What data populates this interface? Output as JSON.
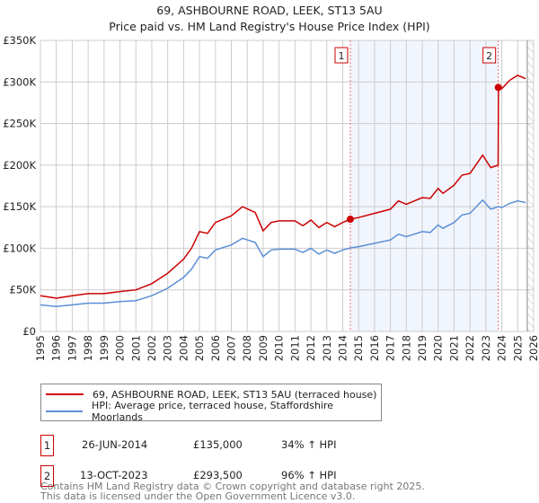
{
  "chart_data": {
    "type": "line",
    "title": "69, ASHBOURNE ROAD, LEEK, ST13 5AU",
    "subtitle": "Price paid vs. HM Land Registry's House Price Index (HPI)",
    "xlim": [
      1995,
      2026
    ],
    "ylim": [
      0,
      350000
    ],
    "grid": true,
    "x_ticks": [
      "1995",
      "1996",
      "1997",
      "1998",
      "1999",
      "2000",
      "2001",
      "2002",
      "2003",
      "2004",
      "2005",
      "2006",
      "2007",
      "2008",
      "2009",
      "2010",
      "2011",
      "2012",
      "2013",
      "2014",
      "2015",
      "2016",
      "2017",
      "2018",
      "2019",
      "2020",
      "2021",
      "2022",
      "2023",
      "2024",
      "2025",
      "2026"
    ],
    "y_ticks": [
      {
        "v": 0,
        "label": "£0"
      },
      {
        "v": 50000,
        "label": "£50K"
      },
      {
        "v": 100000,
        "label": "£100K"
      },
      {
        "v": 150000,
        "label": "£150K"
      },
      {
        "v": 200000,
        "label": "£200K"
      },
      {
        "v": 250000,
        "label": "£250K"
      },
      {
        "v": 300000,
        "label": "£300K"
      },
      {
        "v": 350000,
        "label": "£350K"
      }
    ],
    "legend_placement": "below",
    "series": [
      {
        "name": "69, ASHBOURNE ROAD, LEEK, ST13 5AU (terraced house)",
        "color": "#cc0000",
        "x": [
          1995,
          1996,
          1997,
          1998,
          1999,
          2000,
          2001,
          2002,
          2003,
          2004,
          2004.5,
          2005,
          2005.5,
          2006,
          2007,
          2007.7,
          2008.5,
          2009,
          2009.5,
          2010,
          2011,
          2011.5,
          2012,
          2012.5,
          2013,
          2013.5,
          2014,
          2014.48,
          2015,
          2016,
          2017,
          2017.5,
          2018,
          2019,
          2019.5,
          2020,
          2020.3,
          2021,
          2021.5,
          2022,
          2022.8,
          2023.3,
          2023.77,
          2023.79,
          2024,
          2024.5,
          2025,
          2025.5
        ],
        "y": [
          43000,
          40000,
          43000,
          45500,
          45500,
          48000,
          50000,
          57500,
          70000,
          87000,
          100000,
          120000,
          118000,
          131000,
          139000,
          150000,
          143000,
          121000,
          131000,
          133000,
          133000,
          127000,
          134000,
          125000,
          131000,
          126000,
          131000,
          135000,
          137000,
          142000,
          147000,
          157000,
          153000,
          161000,
          160000,
          172000,
          166000,
          176000,
          188000,
          190000,
          212000,
          197000,
          200000,
          293500,
          292000,
          302000,
          308000,
          304000
        ]
      },
      {
        "name": "HPI: Average price, terraced house, Staffordshire Moorlands",
        "color": "#5b8fd6",
        "x": [
          1995,
          1996,
          1997,
          1998,
          1999,
          2000,
          2001,
          2002,
          2003,
          2004,
          2004.5,
          2005,
          2005.5,
          2006,
          2007,
          2007.7,
          2008.5,
          2009,
          2009.5,
          2010,
          2011,
          2011.5,
          2012,
          2012.5,
          2013,
          2013.5,
          2014,
          2014.48,
          2015,
          2016,
          2017,
          2017.5,
          2018,
          2019,
          2019.5,
          2020,
          2020.3,
          2021,
          2021.5,
          2022,
          2022.8,
          2023.3,
          2023.8,
          2024,
          2024.5,
          2025,
          2025.5
        ],
        "y": [
          32000,
          30000,
          32000,
          34000,
          34000,
          36000,
          37000,
          43000,
          52000,
          65000,
          75000,
          90000,
          88000,
          98000,
          104000,
          112000,
          107000,
          90000,
          98000,
          99000,
          99000,
          95000,
          100000,
          93000,
          98000,
          94000,
          98000,
          100500,
          102000,
          106000,
          110000,
          117000,
          114000,
          120000,
          119000,
          128000,
          124000,
          131000,
          140000,
          142000,
          158000,
          147000,
          150000,
          149000,
          154000,
          157000,
          155000
        ]
      }
    ],
    "annotations": [
      {
        "label": "1",
        "x": 2014.48,
        "y": 135000
      },
      {
        "label": "2",
        "x": 2023.78,
        "y": 293500
      }
    ],
    "shaded_range": [
      2014.48,
      2023.78
    ],
    "data_end": 2025.6
  },
  "legend": {
    "property": "69, ASHBOURNE ROAD, LEEK, ST13 5AU (terraced house)",
    "hpi": "HPI: Average price, terraced house, Staffordshire Moorlands"
  },
  "transactions": [
    {
      "num": "1",
      "date": "26-JUN-2014",
      "price": "£135,000",
      "delta": "34% ↑ HPI"
    },
    {
      "num": "2",
      "date": "13-OCT-2023",
      "price": "£293,500",
      "delta": "96% ↑ HPI"
    }
  ],
  "footer": {
    "line1": "Contains HM Land Registry data © Crown copyright and database right 2025.",
    "line2": "This data is licensed under the Open Government Licence v3.0."
  }
}
